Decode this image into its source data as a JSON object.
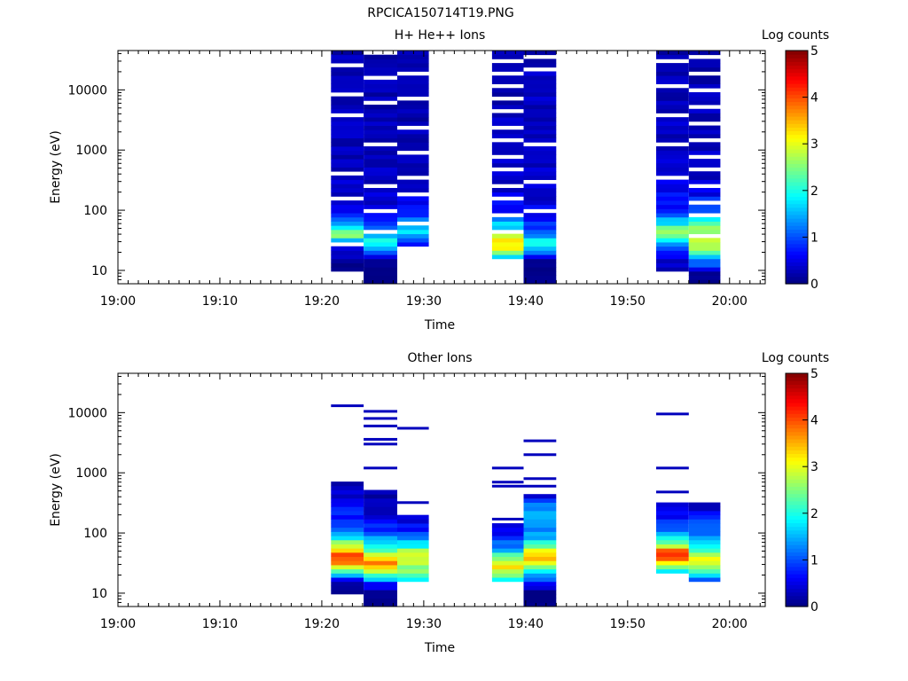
{
  "figure_title": "RPCICA150714T19.PNG",
  "chart_data": [
    {
      "type": "heatmap",
      "title": "H+ He++ Ions",
      "xlabel": "Time",
      "ylabel": "Energy (eV)",
      "x_tick_labels": [
        "19:00",
        "19:10",
        "19:20",
        "19:30",
        "19:40",
        "19:50",
        "20:00"
      ],
      "x_range_minutes": [
        0,
        63.5
      ],
      "y_tick_labels": [
        "10",
        "100",
        "1000",
        "10000"
      ],
      "y_scale": "log",
      "y_range": [
        6,
        45000
      ],
      "colorbar": {
        "label": "Log counts",
        "range": [
          0,
          5
        ],
        "tick_labels": [
          "0",
          "1",
          "2",
          "3",
          "4",
          "5"
        ],
        "colormap": "jet"
      },
      "columns": [
        {
          "t_start": 20.9,
          "t_end": 24.1,
          "profile": [
            [
              9,
              0.05
            ],
            [
              14,
              0.1
            ],
            [
              20,
              0.4
            ],
            [
              28,
              1.0
            ],
            [
              32,
              1.7
            ],
            [
              36,
              2.5
            ],
            [
              40,
              3.1
            ],
            [
              45,
              2.5
            ],
            [
              52,
              1.8
            ],
            [
              60,
              1.3
            ],
            [
              80,
              0.8
            ],
            [
              100,
              0.45
            ],
            [
              300,
              0.35
            ],
            [
              1000,
              0.3
            ],
            [
              45000,
              0.25
            ]
          ],
          "gap_bins": [
            9,
            20,
            26,
            40,
            45,
            52
          ]
        },
        {
          "t_start": 24.1,
          "t_end": 27.4,
          "profile": [
            [
              6,
              0.02
            ],
            [
              10,
              0.05
            ],
            [
              16,
              0.2
            ],
            [
              22,
              1.2
            ],
            [
              26,
              1.7
            ],
            [
              30,
              2.2
            ],
            [
              36,
              1.7
            ],
            [
              42,
              1.2
            ],
            [
              50,
              1.0
            ],
            [
              60,
              0.9
            ],
            [
              80,
              0.65
            ],
            [
              120,
              0.45
            ],
            [
              500,
              0.35
            ],
            [
              45000,
              0.2
            ]
          ],
          "gap_bins": [
            12,
            17,
            23,
            33,
            43,
            49,
            55
          ]
        },
        {
          "t_start": 27.4,
          "t_end": 30.5,
          "profile": [
            [
              20,
              0.3
            ],
            [
              26,
              0.6
            ],
            [
              32,
              1.0
            ],
            [
              40,
              1.5
            ],
            [
              48,
              1.9
            ],
            [
              56,
              1.6
            ],
            [
              70,
              1.1
            ],
            [
              100,
              0.6
            ],
            [
              300,
              0.3
            ],
            [
              45000,
              0.2
            ]
          ],
          "gap_bins": [
            8,
            14,
            21,
            25,
            31,
            37,
            44,
            50
          ]
        },
        {
          "t_start": 36.7,
          "t_end": 39.8,
          "profile": [
            [
              15,
              1.0
            ],
            [
              18,
              2.3
            ],
            [
              22,
              2.9
            ],
            [
              28,
              3.3
            ],
            [
              34,
              2.9
            ],
            [
              42,
              2.3
            ],
            [
              52,
              1.8
            ],
            [
              65,
              1.4
            ],
            [
              80,
              1.0
            ],
            [
              100,
              0.7
            ],
            [
              200,
              0.4
            ],
            [
              45000,
              0.2
            ]
          ],
          "gap_bins": [
            12,
            16,
            20,
            23,
            27,
            30,
            34,
            37,
            41,
            44,
            47,
            50,
            53
          ]
        },
        {
          "t_start": 39.8,
          "t_end": 43.0,
          "profile": [
            [
              6,
              0.02
            ],
            [
              10,
              0.05
            ],
            [
              15,
              0.2
            ],
            [
              20,
              1.0
            ],
            [
              24,
              1.6
            ],
            [
              28,
              2.0
            ],
            [
              34,
              1.6
            ],
            [
              40,
              1.2
            ],
            [
              48,
              0.9
            ],
            [
              60,
              0.8
            ],
            [
              90,
              0.6
            ],
            [
              150,
              0.45
            ],
            [
              500,
              0.35
            ],
            [
              45000,
              0.3
            ]
          ],
          "gap_bins": [
            17,
            24,
            33,
            51,
            54
          ]
        },
        {
          "t_start": 52.8,
          "t_end": 56.0,
          "profile": [
            [
              9,
              0.3
            ],
            [
              20,
              0.5
            ],
            [
              25,
              1.0
            ],
            [
              30,
              1.7
            ],
            [
              36,
              2.3
            ],
            [
              42,
              2.6
            ],
            [
              50,
              2.3
            ],
            [
              60,
              1.8
            ],
            [
              80,
              1.2
            ],
            [
              120,
              0.7
            ],
            [
              300,
              0.45
            ],
            [
              1000,
              0.35
            ],
            [
              45000,
              0.25
            ]
          ],
          "gap_bins": [
            25,
            33,
            40,
            47,
            53
          ]
        },
        {
          "t_start": 56.0,
          "t_end": 59.1,
          "profile": [
            [
              6,
              0.02
            ],
            [
              9,
              0.05
            ],
            [
              20,
              2.2
            ],
            [
              24,
              2.7
            ],
            [
              30,
              3.1
            ],
            [
              38,
              2.9
            ],
            [
              46,
              2.6
            ],
            [
              55,
              2.3
            ],
            [
              70,
              1.8
            ],
            [
              90,
              1.3
            ],
            [
              120,
              0.8
            ],
            [
              300,
              0.4
            ],
            [
              45000,
              0.2
            ]
          ],
          "gap_bins": [
            11,
            16,
            19,
            23,
            27,
            30,
            34,
            38,
            42,
            46,
            50,
            54
          ]
        }
      ]
    },
    {
      "type": "heatmap",
      "title": "Other Ions",
      "xlabel": "Time",
      "ylabel": "Energy (eV)",
      "x_tick_labels": [
        "19:00",
        "19:10",
        "19:20",
        "19:30",
        "19:40",
        "19:50",
        "20:00"
      ],
      "x_range_minutes": [
        0,
        63.5
      ],
      "y_tick_labels": [
        "10",
        "100",
        "1000",
        "10000"
      ],
      "y_scale": "log",
      "y_range": [
        6,
        45000
      ],
      "colorbar": {
        "label": "Log counts",
        "range": [
          0,
          5
        ],
        "tick_labels": [
          "0",
          "1",
          "2",
          "3",
          "4",
          "5"
        ],
        "colormap": "jet"
      },
      "columns": [
        {
          "t_start": 20.9,
          "t_end": 24.1,
          "profile": [
            [
              10,
              0.05
            ],
            [
              15,
              0.3
            ],
            [
              20,
              1.4
            ],
            [
              24,
              2.6
            ],
            [
              30,
              3.6
            ],
            [
              36,
              4.0
            ],
            [
              42,
              4.2
            ],
            [
              50,
              3.6
            ],
            [
              60,
              3.0
            ],
            [
              80,
              2.0
            ],
            [
              120,
              1.2
            ],
            [
              200,
              0.7
            ],
            [
              400,
              0.4
            ],
            [
              700,
              0.2
            ]
          ],
          "sparse_lines": [
            13000
          ]
        },
        {
          "t_start": 24.1,
          "t_end": 27.4,
          "profile": [
            [
              6,
              0.02
            ],
            [
              10,
              0.05
            ],
            [
              15,
              0.8
            ],
            [
              20,
              2.3
            ],
            [
              26,
              3.2
            ],
            [
              32,
              3.6
            ],
            [
              40,
              3.4
            ],
            [
              50,
              2.6
            ],
            [
              60,
              1.8
            ],
            [
              90,
              1.2
            ],
            [
              150,
              0.6
            ],
            [
              300,
              0.3
            ],
            [
              500,
              0.2
            ]
          ],
          "sparse_lines": [
            1200,
            3000,
            3600,
            6000,
            8000,
            10500
          ]
        },
        {
          "t_start": 27.4,
          "t_end": 30.5,
          "profile": [
            [
              15,
              1.6
            ],
            [
              20,
              2.3
            ],
            [
              26,
              2.6
            ],
            [
              32,
              2.9
            ],
            [
              40,
              2.6
            ],
            [
              50,
              3.1
            ],
            [
              60,
              2.0
            ],
            [
              90,
              0.9
            ],
            [
              150,
              0.5
            ],
            [
              200,
              0.3
            ]
          ],
          "sparse_lines": [
            320,
            5500
          ]
        },
        {
          "t_start": 36.7,
          "t_end": 39.8,
          "profile": [
            [
              15,
              0.6
            ],
            [
              18,
              2.3
            ],
            [
              22,
              2.9
            ],
            [
              28,
              3.1
            ],
            [
              34,
              3.0
            ],
            [
              42,
              2.3
            ],
            [
              52,
              1.6
            ],
            [
              70,
              1.1
            ],
            [
              100,
              0.7
            ],
            [
              140,
              0.3
            ]
          ],
          "sparse_lines": [
            170,
            600,
            700,
            1200
          ]
        },
        {
          "t_start": 39.8,
          "t_end": 43.0,
          "profile": [
            [
              6,
              0.02
            ],
            [
              10,
              0.05
            ],
            [
              15,
              0.6
            ],
            [
              20,
              1.4
            ],
            [
              26,
              2.4
            ],
            [
              32,
              3.0
            ],
            [
              40,
              3.7
            ],
            [
              48,
              3.2
            ],
            [
              60,
              2.3
            ],
            [
              80,
              1.6
            ],
            [
              120,
              1.2
            ],
            [
              200,
              1.6
            ],
            [
              300,
              1.1
            ],
            [
              450,
              0.4
            ]
          ],
          "sparse_lines": [
            600,
            800,
            2000,
            3400
          ]
        },
        {
          "t_start": 52.8,
          "t_end": 56.0,
          "profile": [
            [
              20,
              1.0
            ],
            [
              25,
              2.0
            ],
            [
              30,
              3.0
            ],
            [
              36,
              3.8
            ],
            [
              42,
              4.1
            ],
            [
              50,
              4.2
            ],
            [
              60,
              3.0
            ],
            [
              80,
              2.0
            ],
            [
              120,
              1.2
            ],
            [
              200,
              0.6
            ],
            [
              300,
              0.4
            ]
          ],
          "sparse_lines": [
            480,
            1200,
            9500
          ]
        },
        {
          "t_start": 56.0,
          "t_end": 59.1,
          "profile": [
            [
              15,
              0.5
            ],
            [
              18,
              1.4
            ],
            [
              22,
              2.3
            ],
            [
              28,
              2.8
            ],
            [
              34,
              3.0
            ],
            [
              42,
              2.8
            ],
            [
              50,
              2.2
            ],
            [
              70,
              1.6
            ],
            [
              100,
              1.2
            ],
            [
              150,
              0.9
            ],
            [
              200,
              0.6
            ],
            [
              300,
              0.3
            ]
          ],
          "sparse_lines": []
        }
      ]
    }
  ]
}
